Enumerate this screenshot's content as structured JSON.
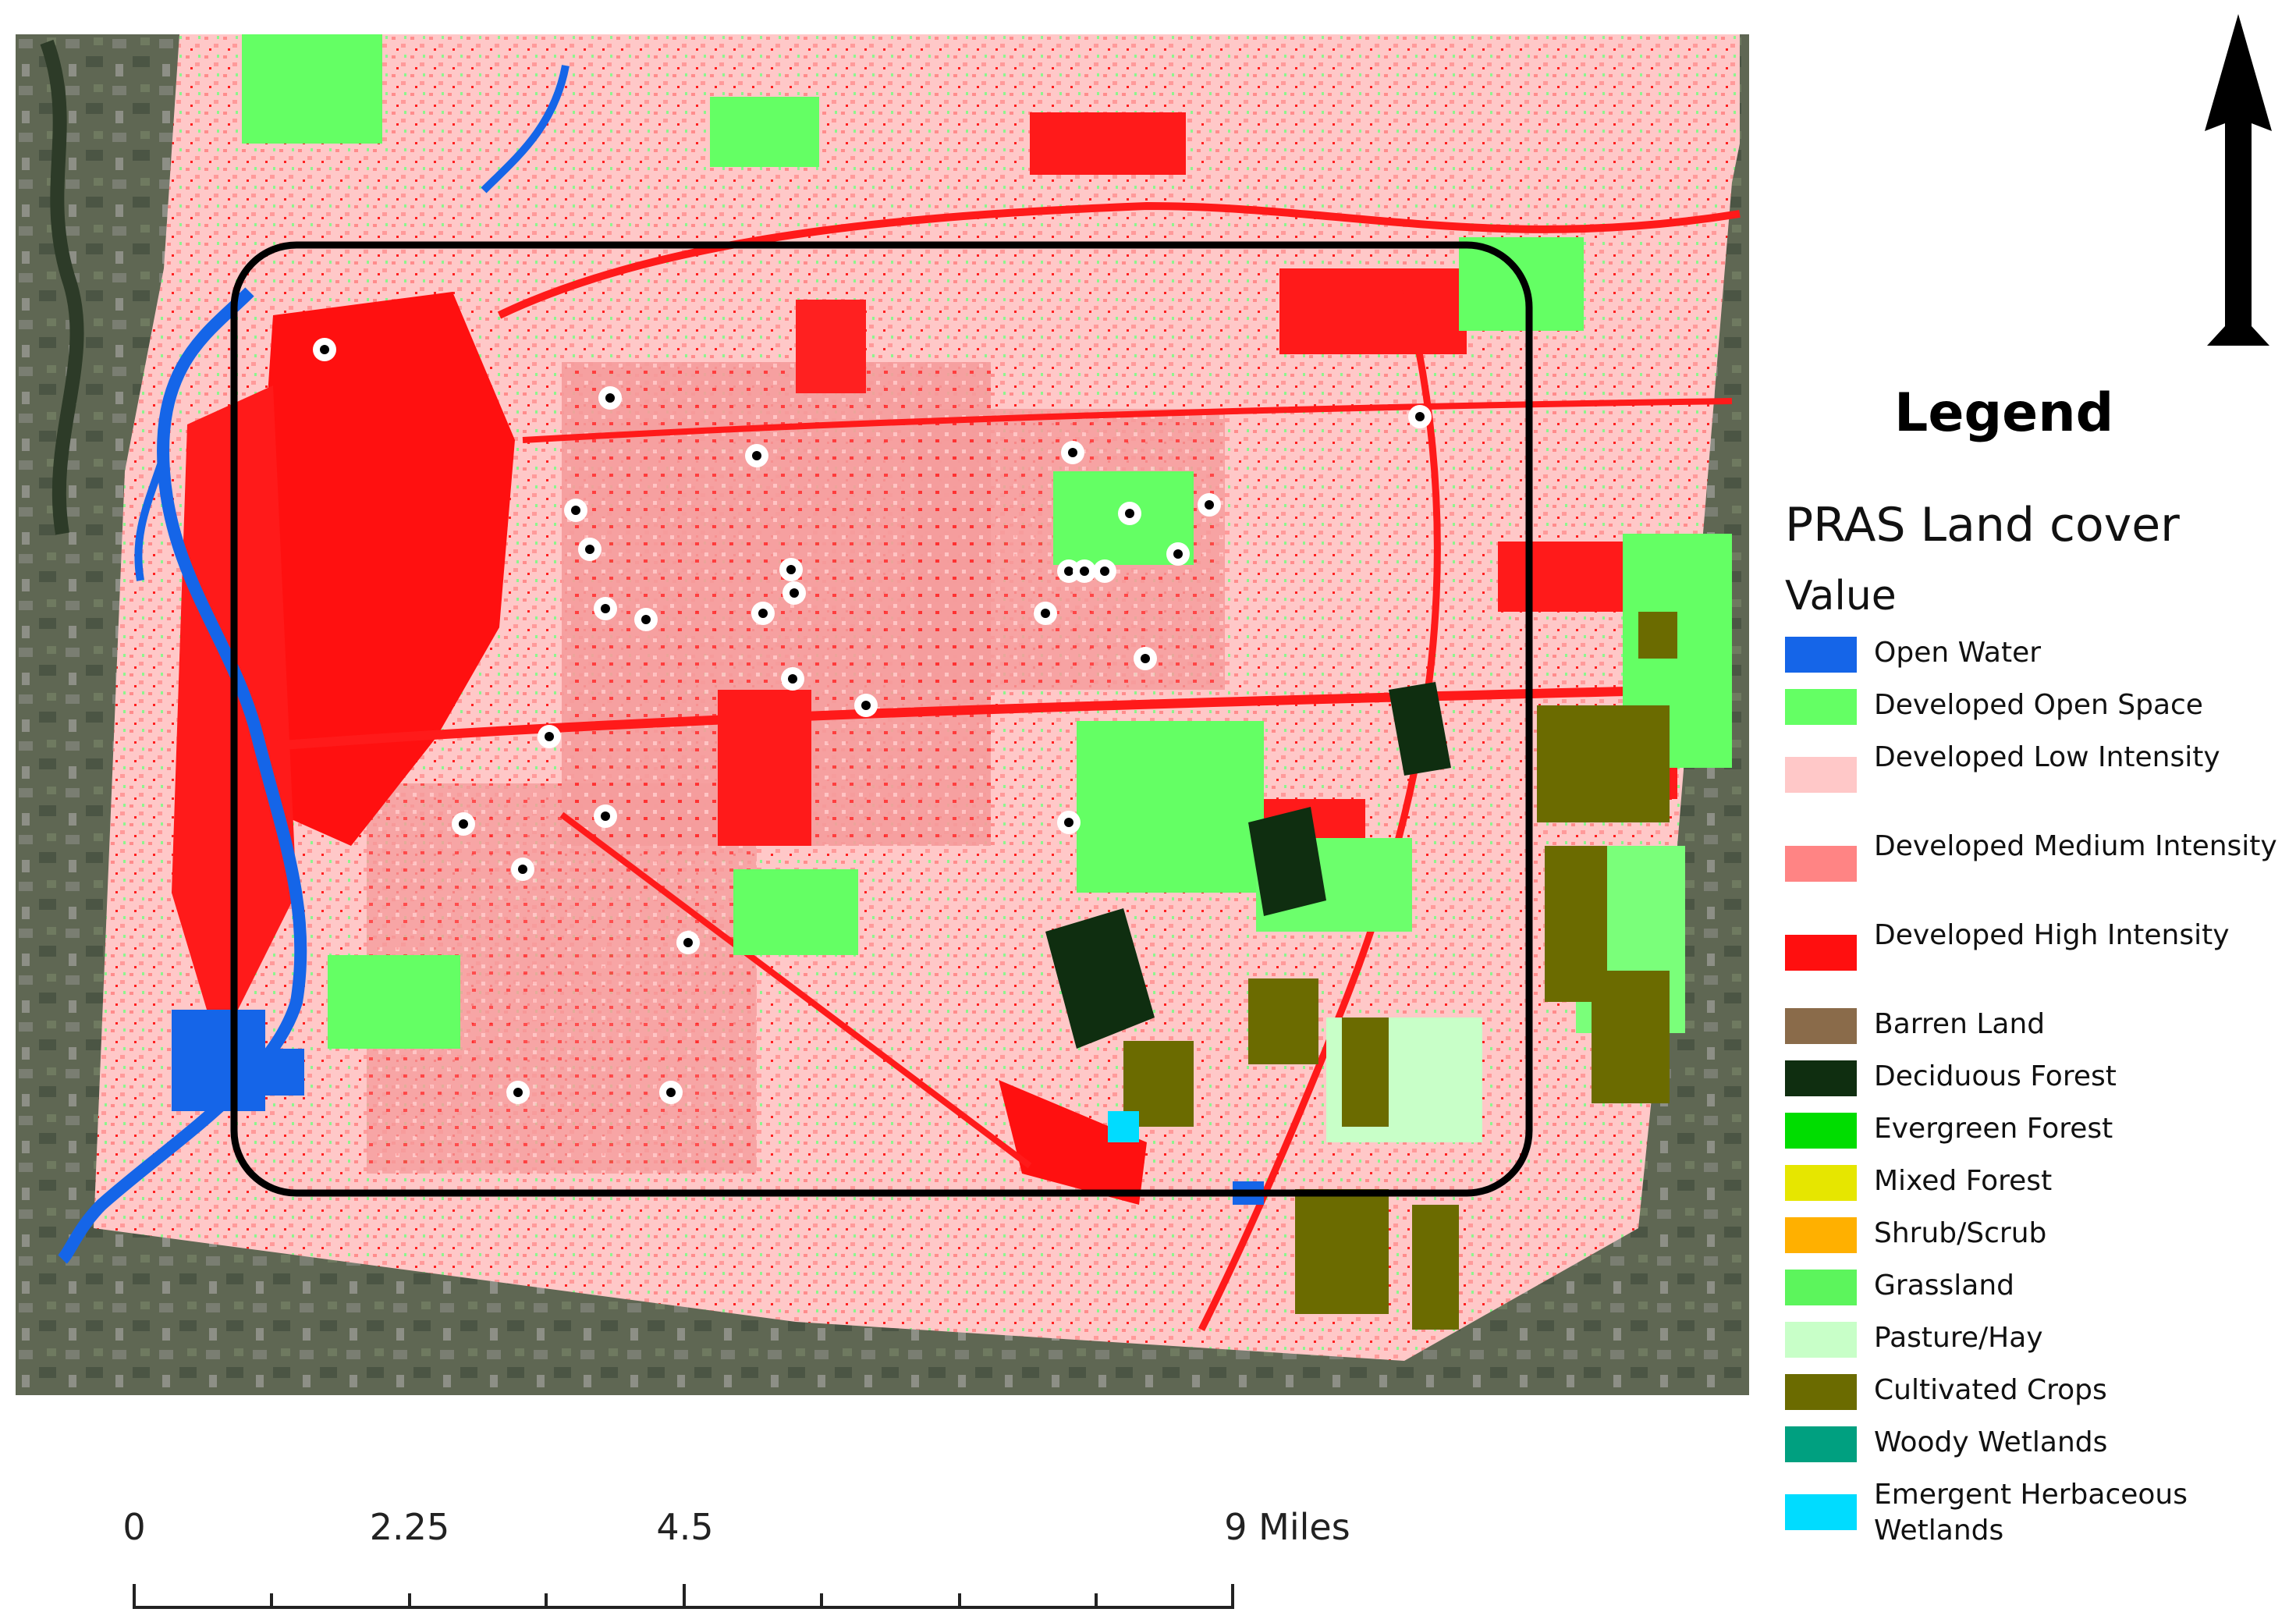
{
  "legend": {
    "title": "Legend",
    "layer_name": "PRAS Land cover",
    "field_name": "Value",
    "items": [
      {
        "label": "Open Water",
        "color": "#1565e8"
      },
      {
        "label": "Developed Open Space",
        "color": "#64ff64"
      },
      {
        "label": "Developed Low Intensity",
        "color": "#ffc8c8"
      },
      {
        "label": "Developed Medium Intensity",
        "color": "#ff8484"
      },
      {
        "label": "Developed High Intensity",
        "color": "#ff0f0f"
      },
      {
        "label": "Barren Land",
        "color": "#8a6b4a"
      },
      {
        "label": "Deciduous Forest",
        "color": "#0f2e10"
      },
      {
        "label": "Evergreen Forest",
        "color": "#00dd00"
      },
      {
        "label": "Mixed Forest",
        "color": "#e6e600"
      },
      {
        "label": "Shrub/Scrub",
        "color": "#ffb000"
      },
      {
        "label": "Grassland",
        "color": "#5cf55c"
      },
      {
        "label": "Pasture/Hay",
        "color": "#c8ffc8"
      },
      {
        "label": "Cultivated Crops",
        "color": "#6b6b00"
      },
      {
        "label": "Woody Wetlands",
        "color": "#00a080"
      },
      {
        "label": "Emergent Herbaceous Wetlands",
        "color": "#00dcff"
      }
    ]
  },
  "scale_bar": {
    "labels": [
      "0",
      "2.25",
      "4.5",
      "9 Miles"
    ]
  },
  "north_arrow": {
    "icon": "north-arrow-icon"
  },
  "map": {
    "basemap": "satellite-imagery",
    "study_area": "rounded-rectangle-boundary",
    "sample_points": "white-circle-black-dot"
  }
}
